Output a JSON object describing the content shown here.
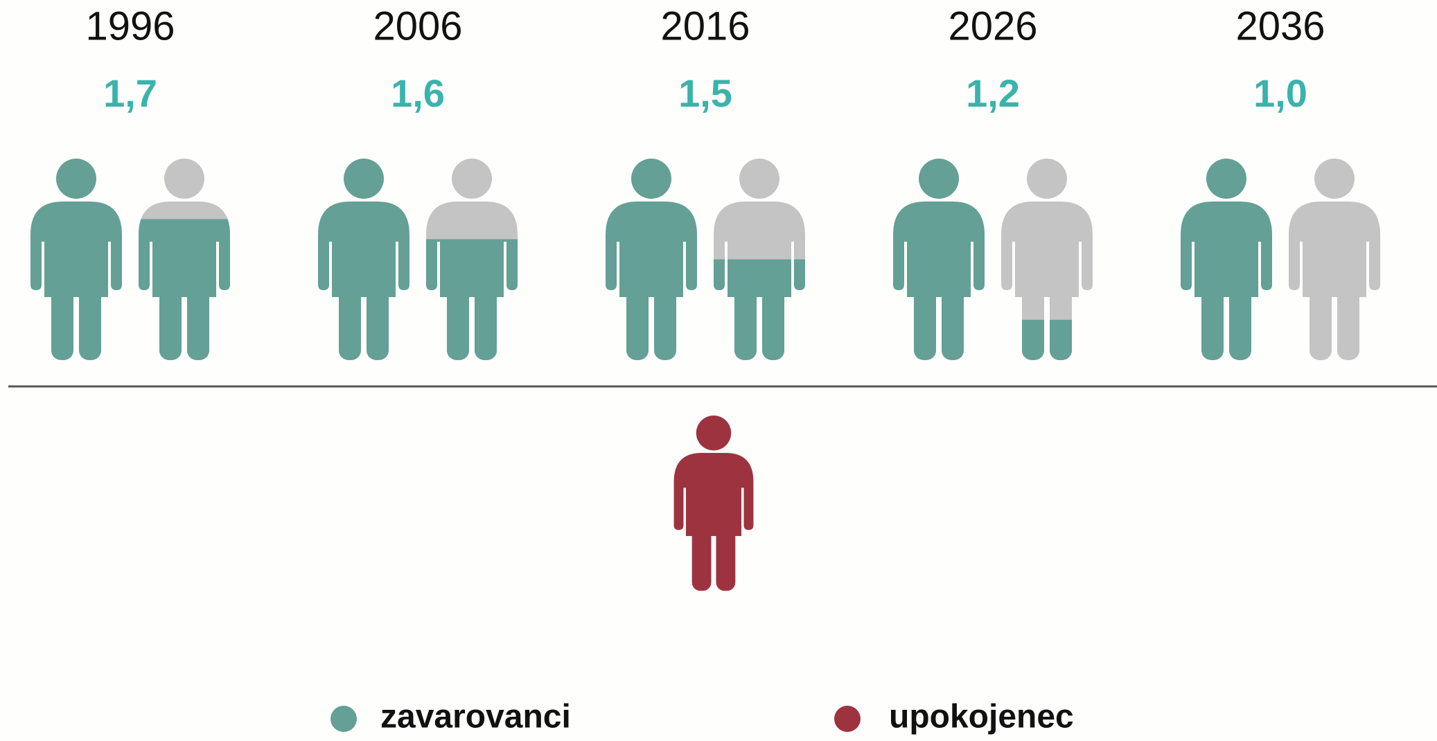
{
  "chart_data": {
    "type": "pictogram",
    "categories": [
      "1996",
      "2006",
      "2016",
      "2026",
      "2036"
    ],
    "values": [
      1.7,
      1.6,
      1.5,
      1.2,
      1.0
    ],
    "value_labels": [
      "1,7",
      "1,6",
      "1,5",
      "1,2",
      "1,0"
    ],
    "label_color": "#3ab3ab",
    "empty_color": "#c4c4c4",
    "legend": [
      {
        "name": "zavarovanci",
        "color": "#64a096"
      },
      {
        "name": "upokojenec",
        "color": "#9e3340"
      }
    ]
  }
}
